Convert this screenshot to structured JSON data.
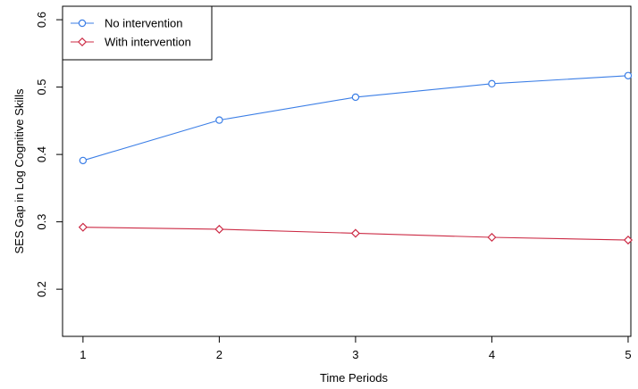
{
  "chart_data": {
    "type": "line",
    "title": "",
    "xlabel": "Time Periods",
    "ylabel": "SES Gap in Log Cognitive Skills",
    "x": [
      1,
      2,
      3,
      4,
      5
    ],
    "x_ticks": [
      "1",
      "2",
      "3",
      "4",
      "5"
    ],
    "y_ticks": [
      "0.2",
      "0.3",
      "0.4",
      "0.5",
      "0.6"
    ],
    "ylim": [
      0.13,
      0.62
    ],
    "xlim": [
      0.85,
      5.02
    ],
    "grid": false,
    "legend_position": "top-left",
    "series": [
      {
        "name": "No intervention",
        "color": "#3b7ee6",
        "marker": "circle",
        "values": [
          0.391,
          0.451,
          0.485,
          0.505,
          0.517
        ]
      },
      {
        "name": "With intervention",
        "color": "#cc2b45",
        "marker": "diamond",
        "values": [
          0.292,
          0.289,
          0.283,
          0.277,
          0.273
        ]
      }
    ]
  }
}
